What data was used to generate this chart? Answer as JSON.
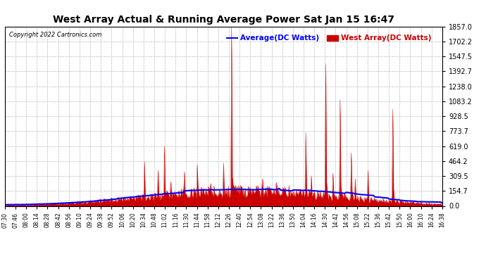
{
  "title": "West Array Actual & Running Average Power Sat Jan 15 16:47",
  "copyright": "Copyright 2022 Cartronics.com",
  "legend_avg": "Average(DC Watts)",
  "legend_west": "West Array(DC Watts)",
  "ylabel_right_ticks": [
    0.0,
    154.7,
    309.5,
    464.2,
    619.0,
    773.7,
    928.5,
    1083.2,
    1238.0,
    1392.7,
    1547.5,
    1702.2,
    1857.0
  ],
  "ymax": 1857.0,
  "ymin": 0.0,
  "bg_color": "#ffffff",
  "plot_bg_color": "#ffffff",
  "grid_color": "#aaaaaa",
  "title_color": "#000000",
  "avg_line_color": "#0000ff",
  "west_fill_color": "#cc0000",
  "west_line_color": "#cc0000",
  "xtick_labels": [
    "07:30",
    "07:46",
    "08:00",
    "08:14",
    "08:28",
    "08:42",
    "08:56",
    "09:10",
    "09:24",
    "09:38",
    "09:52",
    "10:06",
    "10:20",
    "10:34",
    "10:48",
    "11:02",
    "11:16",
    "11:30",
    "11:44",
    "11:58",
    "12:12",
    "12:26",
    "12:40",
    "12:54",
    "13:08",
    "13:22",
    "13:36",
    "13:50",
    "14:04",
    "14:16",
    "14:30",
    "14:42",
    "14:56",
    "15:08",
    "15:22",
    "15:36",
    "15:42",
    "15:50",
    "16:00",
    "16:10",
    "16:24",
    "16:38"
  ],
  "avg_line_color_legend": "#0000ff",
  "west_legend_color": "#cc0000"
}
